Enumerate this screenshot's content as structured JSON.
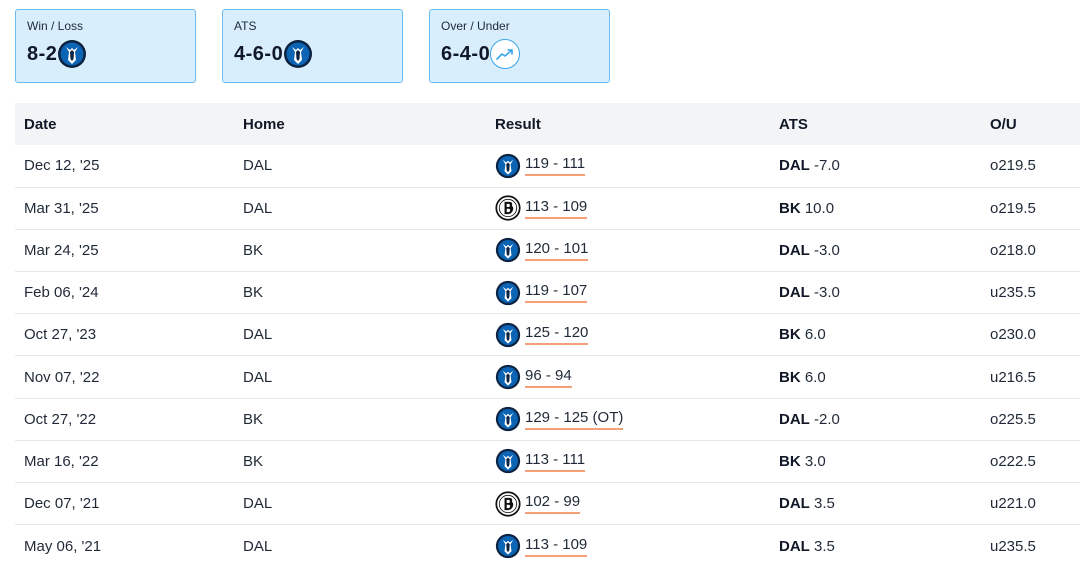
{
  "summary": [
    {
      "title": "Win / Loss",
      "value": "8-2",
      "icon": "mavericks-logo-icon"
    },
    {
      "title": "ATS",
      "value": "4-6-0",
      "icon": "mavericks-logo-icon"
    },
    {
      "title": "Over / Under",
      "value": "6-4-0",
      "icon": "trend-up-icon"
    }
  ],
  "table": {
    "headers": {
      "date": "Date",
      "home": "Home",
      "result": "Result",
      "ats": "ATS",
      "ou": "O/U"
    },
    "rows": [
      {
        "date": "Dec 12, '25",
        "home": "DAL",
        "winner": "mavericks",
        "score": "119 - 111",
        "ats_team": "DAL",
        "ats_line": "-7.0",
        "ou": "o219.5"
      },
      {
        "date": "Mar 31, '25",
        "home": "DAL",
        "winner": "nets",
        "score": "113 - 109",
        "ats_team": "BK",
        "ats_line": "10.0",
        "ou": "o219.5"
      },
      {
        "date": "Mar 24, '25",
        "home": "BK",
        "winner": "mavericks",
        "score": "120 - 101",
        "ats_team": "DAL",
        "ats_line": "-3.0",
        "ou": "o218.0"
      },
      {
        "date": "Feb 06, '24",
        "home": "BK",
        "winner": "mavericks",
        "score": "119 - 107",
        "ats_team": "DAL",
        "ats_line": "-3.0",
        "ou": "u235.5"
      },
      {
        "date": "Oct 27, '23",
        "home": "DAL",
        "winner": "mavericks",
        "score": "125 - 120",
        "ats_team": "BK",
        "ats_line": "6.0",
        "ou": "o230.0"
      },
      {
        "date": "Nov 07, '22",
        "home": "DAL",
        "winner": "mavericks",
        "score": "96 - 94",
        "ats_team": "BK",
        "ats_line": "6.0",
        "ou": "u216.5"
      },
      {
        "date": "Oct 27, '22",
        "home": "BK",
        "winner": "mavericks",
        "score": "129 - 125 (OT)",
        "ats_team": "DAL",
        "ats_line": "-2.0",
        "ou": "o225.5"
      },
      {
        "date": "Mar 16, '22",
        "home": "BK",
        "winner": "mavericks",
        "score": "113 - 111",
        "ats_team": "BK",
        "ats_line": "3.0",
        "ou": "o222.5"
      },
      {
        "date": "Dec 07, '21",
        "home": "DAL",
        "winner": "nets",
        "score": "102 - 99",
        "ats_team": "DAL",
        "ats_line": "3.5",
        "ou": "u221.0"
      },
      {
        "date": "May 06, '21",
        "home": "DAL",
        "winner": "mavericks",
        "score": "113 - 109",
        "ats_team": "DAL",
        "ats_line": "3.5",
        "ou": "u235.5"
      }
    ]
  },
  "colors": {
    "card_bg": "#d8eefc",
    "card_border": "#6cbcf0",
    "score_underline": "#f4a07a",
    "mavs_blue": "#0b64b4",
    "mavs_navy": "#0b2240"
  }
}
